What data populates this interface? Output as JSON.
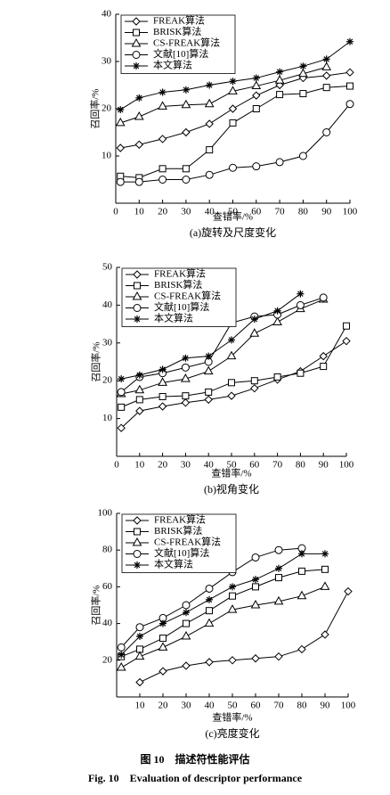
{
  "chart_data": [
    {
      "type": "line",
      "title": "(a)旋转及尺度变化",
      "xlabel": "查错率/%",
      "ylabel": "召回率/%",
      "xlim": [
        0,
        100
      ],
      "ylim": [
        0,
        40
      ],
      "xticks": [
        0,
        10,
        20,
        30,
        40,
        50,
        60,
        70,
        80,
        90,
        100
      ],
      "yticks": [
        10,
        20,
        30,
        40
      ],
      "series": [
        {
          "name": "FREAK算法",
          "marker": "diamond",
          "color": "#000000",
          "x": [
            2,
            10,
            20,
            30,
            40,
            50,
            60,
            70,
            80,
            90,
            100
          ],
          "values": [
            11.7,
            12.4,
            13.6,
            15,
            16.8,
            20,
            22.8,
            25,
            26.5,
            27,
            27.7
          ]
        },
        {
          "name": "BRISK算法",
          "marker": "square",
          "color": "#000000",
          "x": [
            2,
            10,
            20,
            30,
            40,
            50,
            60,
            70,
            80,
            90,
            100
          ],
          "values": [
            5.7,
            5.4,
            7.3,
            7.3,
            11.3,
            17,
            20,
            23,
            23.2,
            24.5,
            24.8
          ]
        },
        {
          "name": "CS-FREAK算法",
          "marker": "triangle",
          "color": "#000000",
          "x": [
            2,
            10,
            20,
            30,
            40,
            50,
            60,
            70,
            80,
            90
          ],
          "values": [
            17,
            18.3,
            20.5,
            20.8,
            21,
            23.7,
            24.8,
            26,
            27.4,
            28.8
          ]
        },
        {
          "name": "文献[10]算法",
          "marker": "circle",
          "color": "#000000",
          "x": [
            2,
            10,
            20,
            30,
            40,
            50,
            60,
            70,
            80,
            90,
            100
          ],
          "values": [
            4.5,
            4.5,
            5,
            5,
            6,
            7.5,
            7.8,
            8.7,
            10,
            15,
            21
          ]
        },
        {
          "name": "本文算法",
          "marker": "star",
          "color": "#000000",
          "x": [
            2,
            10,
            20,
            30,
            40,
            50,
            60,
            70,
            80,
            90,
            100
          ],
          "values": [
            19.8,
            22.3,
            23.5,
            24,
            25,
            25.8,
            26.5,
            27.8,
            29,
            30.5,
            34.2
          ]
        }
      ]
    },
    {
      "type": "line",
      "title": "(b)视角变化",
      "xlabel": "查错率/%",
      "ylabel": "召回率/%",
      "xlim": [
        0,
        100
      ],
      "ylim": [
        0,
        50
      ],
      "xticks": [
        0,
        10,
        20,
        30,
        40,
        50,
        60,
        70,
        80,
        90,
        100
      ],
      "yticks": [
        10,
        20,
        30,
        40,
        50
      ],
      "series": [
        {
          "name": "FREAK算法",
          "marker": "diamond",
          "color": "#000000",
          "x": [
            2,
            10,
            20,
            30,
            40,
            50,
            60,
            70,
            80,
            90,
            100
          ],
          "values": [
            7.5,
            12,
            13.2,
            14.2,
            15,
            16,
            18,
            20.3,
            22.5,
            26.5,
            30.5
          ]
        },
        {
          "name": "BRISK算法",
          "marker": "square",
          "color": "#000000",
          "x": [
            2,
            10,
            20,
            30,
            40,
            50,
            60,
            70,
            80,
            90,
            100
          ],
          "values": [
            13,
            15,
            15.8,
            16,
            17,
            19.5,
            20,
            21,
            22,
            23.8,
            34.5
          ]
        },
        {
          "name": "CS-FREAK算法",
          "marker": "triangle",
          "color": "#000000",
          "x": [
            2,
            10,
            20,
            30,
            40,
            50,
            60,
            70,
            80,
            90
          ],
          "values": [
            16.5,
            17.5,
            19.5,
            20.5,
            22.5,
            26.5,
            32.5,
            35.5,
            39,
            41.5
          ]
        },
        {
          "name": "文献[10]算法",
          "marker": "circle",
          "color": "#000000",
          "x": [
            2,
            10,
            20,
            30,
            40,
            50,
            60,
            70,
            80,
            90
          ],
          "values": [
            17,
            21,
            22,
            23.5,
            25,
            35.3,
            37,
            37.5,
            40,
            42
          ]
        },
        {
          "name": "本文算法",
          "marker": "star",
          "color": "#000000",
          "x": [
            2,
            10,
            20,
            30,
            40,
            50,
            60,
            70,
            80
          ],
          "values": [
            20.5,
            21.5,
            23,
            26,
            26.5,
            30.8,
            36.3,
            38.5,
            43
          ]
        }
      ]
    },
    {
      "type": "line",
      "title": "(c)亮度变化",
      "xlabel": "查错率/%",
      "ylabel": "召回率/%",
      "xlim": [
        0,
        100
      ],
      "ylim": [
        0,
        100
      ],
      "xticks": [
        10,
        20,
        30,
        40,
        50,
        60,
        70,
        80,
        90,
        100
      ],
      "yticks": [
        20,
        40,
        60,
        80,
        100
      ],
      "series": [
        {
          "name": "FREAK算法",
          "marker": "diamond",
          "color": "#000000",
          "x": [
            10,
            20,
            30,
            40,
            50,
            60,
            70,
            80,
            90,
            100
          ],
          "values": [
            8,
            14,
            17,
            19,
            20,
            21,
            22,
            26,
            34,
            57.5
          ]
        },
        {
          "name": "BRISK算法",
          "marker": "square",
          "color": "#000000",
          "x": [
            2,
            10,
            20,
            30,
            40,
            50,
            60,
            70,
            80,
            90
          ],
          "values": [
            22,
            26,
            32,
            40,
            47,
            55,
            60,
            65,
            68.5,
            69.5
          ]
        },
        {
          "name": "CS-FREAK算法",
          "marker": "triangle",
          "color": "#000000",
          "x": [
            2,
            10,
            20,
            30,
            40,
            50,
            60,
            70,
            80,
            90
          ],
          "values": [
            16,
            22,
            27,
            33,
            40,
            47.5,
            50,
            52,
            55,
            60
          ]
        },
        {
          "name": "文献[10]算法",
          "marker": "circle",
          "color": "#000000",
          "x": [
            2,
            10,
            20,
            30,
            40,
            50,
            60,
            70,
            80
          ],
          "values": [
            27,
            38,
            43,
            50,
            59,
            68,
            76,
            80,
            81
          ]
        },
        {
          "name": "本文算法",
          "marker": "star",
          "color": "#000000",
          "x": [
            2,
            10,
            20,
            30,
            40,
            50,
            60,
            70,
            80,
            90
          ],
          "values": [
            23,
            33,
            40,
            46,
            53,
            60,
            64,
            70,
            78,
            78
          ]
        }
      ]
    }
  ],
  "figure": {
    "caption_cn": "图 10　描述符性能评估",
    "caption_en": "Fig. 10　Evaluation of descriptor performance"
  }
}
